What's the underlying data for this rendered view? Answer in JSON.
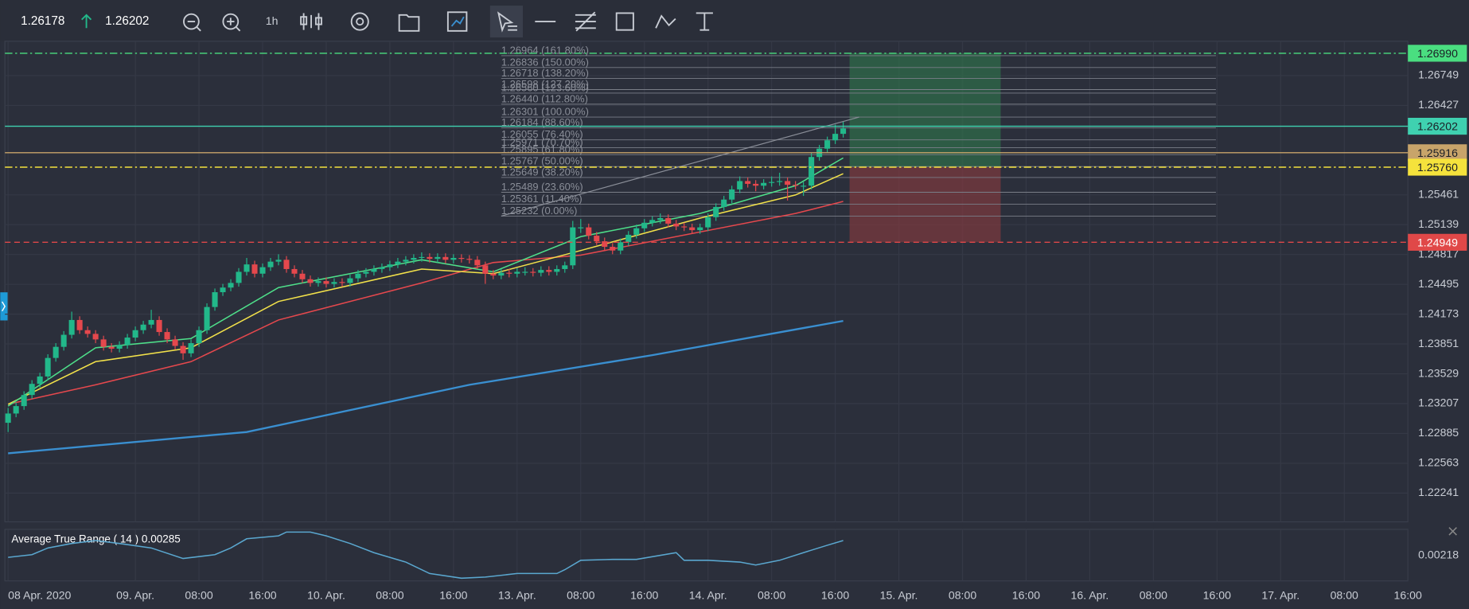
{
  "toolbar": {
    "bid": "1.26178",
    "ask": "1.26202",
    "timeframe": "1h"
  },
  "chart_data": [
    {
      "type": "candlestick",
      "candles": [
        [
          1.23,
          1.2316,
          1.229,
          1.231
        ],
        [
          1.231,
          1.2322,
          1.2306,
          1.2318
        ],
        [
          1.2318,
          1.2334,
          1.2314,
          1.233
        ],
        [
          1.233,
          1.2346,
          1.2326,
          1.2342
        ],
        [
          1.2342,
          1.2354,
          1.2338,
          1.235
        ],
        [
          1.235,
          1.2374,
          1.2346,
          1.237
        ],
        [
          1.237,
          1.2386,
          1.2366,
          1.2382
        ],
        [
          1.2382,
          1.2399,
          1.2378,
          1.2395
        ],
        [
          1.2395,
          1.242,
          1.2391,
          1.2411
        ],
        [
          1.2411,
          1.2415,
          1.2396,
          1.24
        ],
        [
          1.24,
          1.2404,
          1.2392,
          1.2396
        ],
        [
          1.2396,
          1.24,
          1.2386,
          1.239
        ],
        [
          1.239,
          1.2394,
          1.2378,
          1.2382
        ],
        [
          1.2382,
          1.2386,
          1.2376,
          1.238
        ],
        [
          1.238,
          1.2388,
          1.2376,
          1.2384
        ],
        [
          1.2384,
          1.2396,
          1.238,
          1.2392
        ],
        [
          1.2392,
          1.2404,
          1.2388,
          1.24
        ],
        [
          1.24,
          1.241,
          1.2396,
          1.2406
        ],
        [
          1.2406,
          1.2422,
          1.2402,
          1.2411
        ],
        [
          1.2411,
          1.2415,
          1.2394,
          1.2398
        ],
        [
          1.2398,
          1.2402,
          1.2386,
          1.239
        ],
        [
          1.239,
          1.2394,
          1.2379,
          1.2383
        ],
        [
          1.2383,
          1.2387,
          1.2368,
          1.2375
        ],
        [
          1.2375,
          1.239,
          1.2371,
          1.2386
        ],
        [
          1.2386,
          1.2404,
          1.2382,
          1.24
        ],
        [
          1.24,
          1.2429,
          1.2396,
          1.2425
        ],
        [
          1.2425,
          1.2445,
          1.2421,
          1.2441
        ],
        [
          1.2441,
          1.245,
          1.2437,
          1.2446
        ],
        [
          1.2446,
          1.2455,
          1.2442,
          1.2451
        ],
        [
          1.2451,
          1.2467,
          1.2447,
          1.2463
        ],
        [
          1.2463,
          1.2478,
          1.2459,
          1.2471
        ],
        [
          1.2471,
          1.2475,
          1.2457,
          1.2461
        ],
        [
          1.2461,
          1.2472,
          1.2457,
          1.2468
        ],
        [
          1.2468,
          1.2478,
          1.2464,
          1.2474
        ],
        [
          1.2474,
          1.2482,
          1.247,
          1.2476
        ],
        [
          1.2476,
          1.248,
          1.2462,
          1.2466
        ],
        [
          1.2466,
          1.247,
          1.2457,
          1.2461
        ],
        [
          1.2461,
          1.2465,
          1.2451,
          1.2455
        ],
        [
          1.2455,
          1.2459,
          1.2447,
          1.2451
        ],
        [
          1.2451,
          1.2457,
          1.2447,
          1.2453
        ],
        [
          1.2453,
          1.2457,
          1.2446,
          1.245
        ],
        [
          1.245,
          1.2456,
          1.2446,
          1.2452
        ],
        [
          1.2452,
          1.2456,
          1.2447,
          1.2451
        ],
        [
          1.2451,
          1.246,
          1.2447,
          1.2456
        ],
        [
          1.2456,
          1.2465,
          1.2452,
          1.2461
        ],
        [
          1.2461,
          1.2467,
          1.2457,
          1.2463
        ],
        [
          1.2463,
          1.247,
          1.2459,
          1.2466
        ],
        [
          1.2466,
          1.2472,
          1.2462,
          1.2468
        ],
        [
          1.2468,
          1.2475,
          1.2464,
          1.2471
        ],
        [
          1.2471,
          1.2478,
          1.2467,
          1.2474
        ],
        [
          1.2474,
          1.248,
          1.247,
          1.2476
        ],
        [
          1.2476,
          1.2482,
          1.2472,
          1.2478
        ],
        [
          1.2478,
          1.2484,
          1.2474,
          1.2479
        ],
        [
          1.2479,
          1.2483,
          1.2473,
          1.2477
        ],
        [
          1.2477,
          1.2483,
          1.2473,
          1.2479
        ],
        [
          1.2479,
          1.2483,
          1.2472,
          1.2476
        ],
        [
          1.2476,
          1.2482,
          1.2472,
          1.2478
        ],
        [
          1.2478,
          1.2482,
          1.2473,
          1.2477
        ],
        [
          1.2477,
          1.2481,
          1.2472,
          1.2476
        ],
        [
          1.2476,
          1.248,
          1.2466,
          1.247
        ],
        [
          1.247,
          1.2474,
          1.245,
          1.2461
        ],
        [
          1.2461,
          1.2465,
          1.2455,
          1.2459
        ],
        [
          1.2459,
          1.2466,
          1.2455,
          1.2462
        ],
        [
          1.2462,
          1.2466,
          1.2457,
          1.2461
        ],
        [
          1.2461,
          1.2467,
          1.2457,
          1.2463
        ],
        [
          1.2463,
          1.2468,
          1.2459,
          1.2463
        ],
        [
          1.2463,
          1.2467,
          1.2458,
          1.2462
        ],
        [
          1.2462,
          1.2469,
          1.2458,
          1.2465
        ],
        [
          1.2465,
          1.2469,
          1.2459,
          1.2463
        ],
        [
          1.2463,
          1.247,
          1.2459,
          1.2466
        ],
        [
          1.2466,
          1.2474,
          1.2462,
          1.247
        ],
        [
          1.247,
          1.2518,
          1.2466,
          1.2511
        ],
        [
          1.2511,
          1.252,
          1.2505,
          1.2511
        ],
        [
          1.2511,
          1.2515,
          1.2498,
          1.2502
        ],
        [
          1.2502,
          1.2506,
          1.2492,
          1.2496
        ],
        [
          1.2496,
          1.25,
          1.2486,
          1.249
        ],
        [
          1.249,
          1.2494,
          1.2482,
          1.2486
        ],
        [
          1.2486,
          1.2499,
          1.2482,
          1.2495
        ],
        [
          1.2495,
          1.2507,
          1.2491,
          1.2503
        ],
        [
          1.2503,
          1.2514,
          1.2499,
          1.251
        ],
        [
          1.251,
          1.252,
          1.2506,
          1.2516
        ],
        [
          1.2516,
          1.2523,
          1.2512,
          1.2519
        ],
        [
          1.2519,
          1.2526,
          1.2515,
          1.2521
        ],
        [
          1.2521,
          1.2525,
          1.2511,
          1.2515
        ],
        [
          1.2515,
          1.2519,
          1.2508,
          1.2512
        ],
        [
          1.2512,
          1.2516,
          1.2507,
          1.2511
        ],
        [
          1.2511,
          1.2515,
          1.2504,
          1.2508
        ],
        [
          1.2508,
          1.2515,
          1.2504,
          1.2511
        ],
        [
          1.2511,
          1.2526,
          1.2507,
          1.2522
        ],
        [
          1.2522,
          1.2537,
          1.2518,
          1.2533
        ],
        [
          1.2533,
          1.2545,
          1.2529,
          1.2541
        ],
        [
          1.2541,
          1.2556,
          1.2537,
          1.2552
        ],
        [
          1.2552,
          1.2566,
          1.2548,
          1.2561
        ],
        [
          1.2561,
          1.2565,
          1.2554,
          1.2558
        ],
        [
          1.2558,
          1.2562,
          1.255,
          1.2556
        ],
        [
          1.2556,
          1.2563,
          1.2552,
          1.2559
        ],
        [
          1.2559,
          1.2566,
          1.2555,
          1.256
        ],
        [
          1.256,
          1.257,
          1.2556,
          1.2561
        ],
        [
          1.2561,
          1.2565,
          1.254,
          1.2557
        ],
        [
          1.2557,
          1.2561,
          1.2552,
          1.2556
        ],
        [
          1.2556,
          1.256,
          1.2545,
          1.2556
        ],
        [
          1.2556,
          1.2591,
          1.2552,
          1.2587
        ],
        [
          1.2587,
          1.26,
          1.2583,
          1.2596
        ],
        [
          1.2596,
          1.2609,
          1.2592,
          1.2605
        ],
        [
          1.2605,
          1.2622,
          1.2601,
          1.2612
        ],
        [
          1.2612,
          1.2625,
          1.2608,
          1.26178
        ]
      ],
      "up_color": "#22b88a",
      "down_color": "#e5484d",
      "xlim": [
        -0.4,
        176
      ],
      "xticks": [
        {
          "value": 0,
          "label": "08 Apr. 2020"
        },
        {
          "value": 16,
          "label": "09. Apr."
        },
        {
          "value": 24,
          "label": "08:00"
        },
        {
          "value": 32,
          "label": "16:00"
        },
        {
          "value": 40,
          "label": "10. Apr."
        },
        {
          "value": 48,
          "label": "08:00"
        },
        {
          "value": 56,
          "label": "16:00"
        },
        {
          "value": 64,
          "label": "13. Apr."
        },
        {
          "value": 72,
          "label": "08:00"
        },
        {
          "value": 80,
          "label": "16:00"
        },
        {
          "value": 88,
          "label": "14. Apr."
        },
        {
          "value": 96,
          "label": "08:00"
        },
        {
          "value": 104,
          "label": "16:00"
        },
        {
          "value": 112,
          "label": "15. Apr."
        },
        {
          "value": 120,
          "label": "08:00"
        },
        {
          "value": 128,
          "label": "16:00"
        },
        {
          "value": 136,
          "label": "16. Apr."
        },
        {
          "value": 144,
          "label": "08:00"
        },
        {
          "value": 152,
          "label": "16:00"
        },
        {
          "value": 160,
          "label": "17. Apr."
        },
        {
          "value": 168,
          "label": "08:00"
        },
        {
          "value": 176,
          "label": "16:00"
        }
      ],
      "ylim": [
        1.2193,
        1.2712
      ],
      "yticks": [
        1.26749,
        1.26427,
        1.25461,
        1.25139,
        1.24817,
        1.24495,
        1.24173,
        1.23851,
        1.23529,
        1.23207,
        1.22885,
        1.22563,
        1.22241
      ],
      "grid": true,
      "series": [
        {
          "color": "#3a8fd0",
          "x": [
            0,
            30,
            58,
            81,
            105
          ],
          "values": [
            1.2267,
            1.229,
            1.2341,
            1.2373,
            1.241
          ]
        },
        {
          "color": "#e5484d",
          "x": [
            0,
            11,
            23,
            34,
            52,
            61,
            72,
            87,
            99,
            105
          ],
          "values": [
            1.232,
            1.2341,
            1.2366,
            1.2411,
            1.2451,
            1.2473,
            1.2481,
            1.2506,
            1.2526,
            1.2539
          ]
        },
        {
          "color": "#f2e14a",
          "x": [
            0,
            11,
            23,
            34,
            52,
            61,
            72,
            87,
            99,
            105
          ],
          "values": [
            1.232,
            1.2366,
            1.2381,
            1.2431,
            1.2466,
            1.2461,
            1.2486,
            1.2521,
            1.2546,
            1.2569
          ]
        },
        {
          "color": "#4ee08a",
          "x": [
            0,
            11,
            23,
            34,
            52,
            61,
            72,
            87,
            99,
            105
          ],
          "values": [
            1.2318,
            1.2381,
            1.2391,
            1.2446,
            1.2476,
            1.2463,
            1.2501,
            1.2526,
            1.2556,
            1.2586
          ]
        }
      ],
      "fib_line": {
        "x": [
          62,
          107
        ],
        "values": [
          1.25232,
          1.26301
        ]
      },
      "fib_levels": [
        {
          "value": 1.26964,
          "label": "1.26964 (161.80%)"
        },
        {
          "value": 1.26836,
          "label": "1.26836 (150.00%)"
        },
        {
          "value": 1.26718,
          "label": "1.26718 (138.20%)"
        },
        {
          "value": 1.26598,
          "label": "1.26598 (127.20%)"
        },
        {
          "value": 1.2656,
          "label": "1.26560 (123.60%)"
        },
        {
          "value": 1.2644,
          "label": "1.26440 (112.80%)"
        },
        {
          "value": 1.26301,
          "label": "1.26301 (100.00%)"
        },
        {
          "value": 1.26184,
          "label": "1.26184 (88.60%)"
        },
        {
          "value": 1.26055,
          "label": "1.26055 (76.40%)"
        },
        {
          "value": 1.25971,
          "label": "1.25971 (70.70%)"
        },
        {
          "value": 1.25895,
          "label": "1.25895 (61.80%)"
        },
        {
          "value": 1.25767,
          "label": "1.25767 (50.00%)"
        },
        {
          "value": 1.25649,
          "label": "1.25649 (38.20%)"
        },
        {
          "value": 1.25489,
          "label": "1.25489 (23.60%)"
        },
        {
          "value": 1.25361,
          "label": "1.25361 (11.40%)"
        },
        {
          "value": 1.25232,
          "label": "1.25232 (0.00%)"
        }
      ],
      "levels": [
        {
          "value": 1.2699,
          "label": "1.26990",
          "color": "#4ade80",
          "text_color": "#1b1e26",
          "style": "dashdot"
        },
        {
          "value": 1.26202,
          "label": "1.26202",
          "color": "#3fd1b0",
          "text_color": "#1b1e26",
          "style": "solid"
        },
        {
          "value": 1.25916,
          "label": "1.25916",
          "color": "#c8a46a",
          "text_color": "#1b1e26",
          "style": "solid"
        },
        {
          "value": 1.2576,
          "label": "1.25760",
          "color": "#f5e23c",
          "text_color": "#1b1e26",
          "style": "dashdot"
        },
        {
          "value": 1.24949,
          "label": "1.24949",
          "color": "#e04848",
          "text_color": "#ffffff",
          "style": "dashed"
        }
      ],
      "position": {
        "x": [
          105.8,
          124.8
        ],
        "target": 1.2699,
        "entry": 1.2576,
        "stop": 1.24949,
        "profit_color": "#2f6b4a",
        "loss_color": "#7a3a3f"
      }
    },
    {
      "type": "line",
      "title": "Average True Range ( 14 ) 0.00285",
      "color": "#5aa7cf",
      "xlim": [
        -0.4,
        176
      ],
      "ylim": [
        0.00105,
        0.00335
      ],
      "yticks": [
        0.00218
      ],
      "x": [
        0,
        3,
        5,
        8,
        11,
        14,
        18,
        22,
        26,
        28,
        30,
        34,
        35,
        38,
        40,
        43,
        46,
        50,
        53,
        57,
        60,
        64,
        69,
        70,
        72,
        76,
        79,
        84,
        85,
        88,
        92,
        94,
        97,
        100,
        103,
        105
      ],
      "values": [
        0.0021,
        0.00222,
        0.00252,
        0.00272,
        0.00285,
        0.00272,
        0.00252,
        0.00205,
        0.00222,
        0.00252,
        0.00293,
        0.00306,
        0.00323,
        0.00323,
        0.00306,
        0.00272,
        0.00231,
        0.00189,
        0.00138,
        0.00117,
        0.00122,
        0.00138,
        0.00138,
        0.00155,
        0.00197,
        0.00201,
        0.00201,
        0.00231,
        0.00197,
        0.00197,
        0.00189,
        0.00176,
        0.00197,
        0.00231,
        0.00264,
        0.00285
      ]
    }
  ]
}
